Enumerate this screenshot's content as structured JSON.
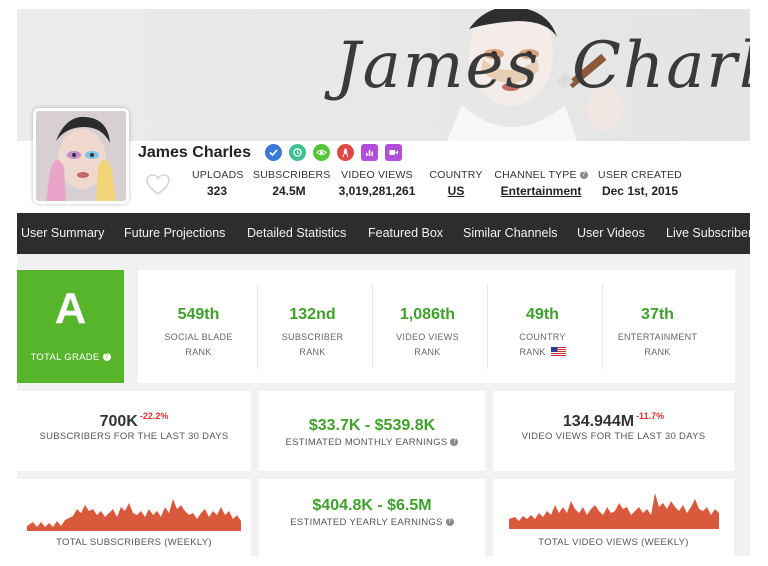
{
  "banner": {
    "left_word": "James",
    "right_word": "Charles"
  },
  "channel": {
    "name": "James Charles",
    "badges": [
      {
        "icon": "verified-check-icon",
        "color": "#3a7bd5"
      },
      {
        "icon": "clock-icon",
        "color": "#3fbf8f"
      },
      {
        "icon": "eye-icon",
        "color": "#56c43a"
      },
      {
        "icon": "rocket-icon",
        "color": "#e04848"
      },
      {
        "icon": "bar-chart-icon",
        "color": "#b24ed8"
      },
      {
        "icon": "video-camera-icon",
        "color": "#b24ed8"
      }
    ],
    "stats": {
      "uploads_label": "UPLOADS",
      "uploads": "323",
      "subscribers_label": "SUBSCRIBERS",
      "subscribers": "24.5M",
      "views_label": "VIDEO VIEWS",
      "views": "3,019,281,261",
      "country_label": "COUNTRY",
      "country": "US",
      "type_label": "CHANNEL TYPE",
      "type": "Entertainment",
      "created_label": "USER CREATED",
      "created": "Dec 1st, 2015"
    }
  },
  "nav": {
    "items": [
      "User Summary",
      "Future Projections",
      "Detailed Statistics",
      "Featured Box",
      "Similar Channels",
      "User Videos",
      "Live Subscriber"
    ]
  },
  "grade": {
    "letter": "A",
    "label": "TOTAL GRADE"
  },
  "ranks": [
    {
      "value": "549th",
      "line1": "SOCIAL BLADE",
      "line2": "RANK"
    },
    {
      "value": "132nd",
      "line1": "SUBSCRIBER",
      "line2": "RANK"
    },
    {
      "value": "1,086th",
      "line1": "VIDEO VIEWS",
      "line2": "RANK"
    },
    {
      "value": "49th",
      "line1": "COUNTRY",
      "line2": "RANK"
    },
    {
      "value": "37th",
      "line1": "ENTERTAINMENT",
      "line2": "RANK"
    }
  ],
  "cards": {
    "subs30": {
      "value": "700K",
      "change": "-22.2%",
      "label": "SUBSCRIBERS FOR THE LAST 30 DAYS"
    },
    "monthly": {
      "value": "$33.7K - $539.8K",
      "label": "ESTIMATED MONTHLY EARNINGS"
    },
    "views30": {
      "value": "134.944M",
      "change": "-11.7%",
      "label": "VIDEO VIEWS FOR THE LAST 30 DAYS"
    },
    "yearly": {
      "value": "$404.8K - $6.5M",
      "label": "ESTIMATED YEARLY EARNINGS"
    },
    "subs_weekly": {
      "label": "TOTAL SUBSCRIBERS (WEEKLY)"
    },
    "views_weekly": {
      "label": "TOTAL VIDEO VIEWS (WEEKLY)"
    }
  },
  "colors": {
    "green": "#3fa02b",
    "grade_bg": "#56b52b",
    "nav_bg": "#2d2d2d",
    "negative": "#d83232",
    "sparkline": "#d9593d"
  }
}
